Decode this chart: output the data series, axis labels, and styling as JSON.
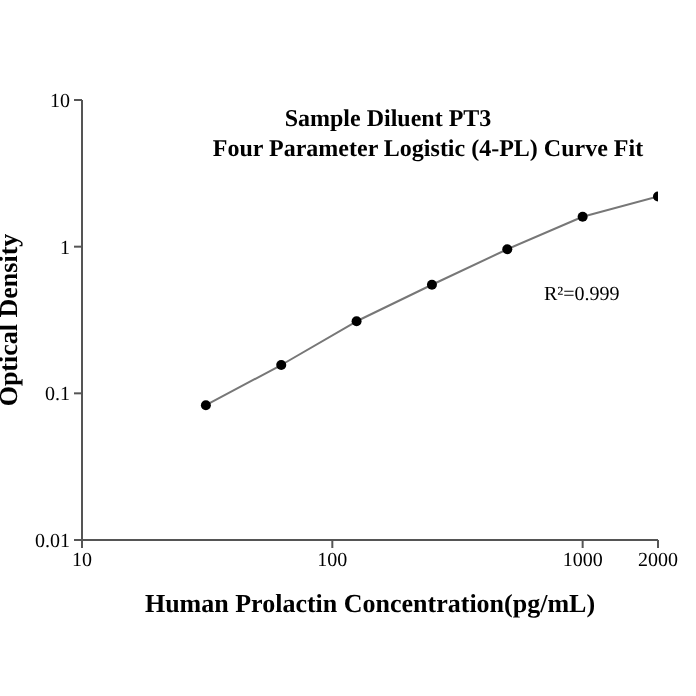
{
  "chart_data": {
    "type": "line",
    "title": "Sample Diluent PT3",
    "subtitle": "Four Parameter Logistic (4-PL) Curve Fit",
    "xlabel": "Human Prolactin Concentration(pg/mL)",
    "ylabel": "Optical Density",
    "x": [
      31.25,
      62.5,
      125,
      250,
      500,
      1000,
      2000
    ],
    "series": [
      {
        "color": "#000000",
        "values": [
          0.083,
          0.156,
          0.31,
          0.55,
          0.96,
          1.6,
          2.2
        ]
      }
    ],
    "log": "xy",
    "xlim": [
      10,
      2000
    ],
    "xticks": [
      10,
      100,
      1000,
      2000
    ],
    "ylim": [
      0.01,
      10
    ],
    "yticks": [
      0.01,
      0.1,
      1,
      10
    ],
    "marker": "circle",
    "line_style": "solid",
    "grid": false,
    "annotations": [
      "R²=0.999"
    ]
  }
}
